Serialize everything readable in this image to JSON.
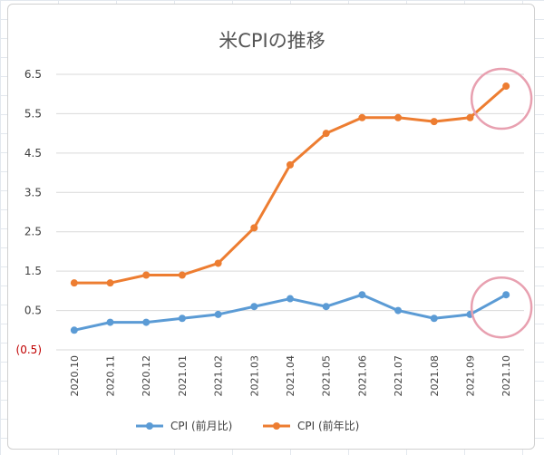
{
  "chart_data": {
    "type": "line",
    "title": "米CPIの推移",
    "categories": [
      "2020.10",
      "2020.11",
      "2020.12",
      "2021.01",
      "2021.02",
      "2021.03",
      "2021.04",
      "2021.05",
      "2021.06",
      "2021.07",
      "2021.08",
      "2021.09",
      "2021.10"
    ],
    "ylim": [
      -0.5,
      6.5
    ],
    "yticks": [
      "6.5",
      "5.5",
      "4.5",
      "3.5",
      "2.5",
      "1.5",
      "0.5",
      "(0.5)"
    ],
    "grid": true,
    "legend_position": "bottom",
    "series": [
      {
        "name": "CPI (前月比)",
        "color": "#5b9bd5",
        "values": [
          0.0,
          0.2,
          0.2,
          0.3,
          0.4,
          0.6,
          0.8,
          0.6,
          0.9,
          0.5,
          0.3,
          0.4,
          0.9
        ]
      },
      {
        "name": "CPI (前年比)",
        "color": "#ed7d31",
        "values": [
          1.2,
          1.2,
          1.4,
          1.4,
          1.7,
          2.6,
          4.2,
          5.0,
          5.4,
          5.4,
          5.3,
          5.4,
          6.2
        ]
      }
    ],
    "highlight_color": "#e8a0b0"
  }
}
